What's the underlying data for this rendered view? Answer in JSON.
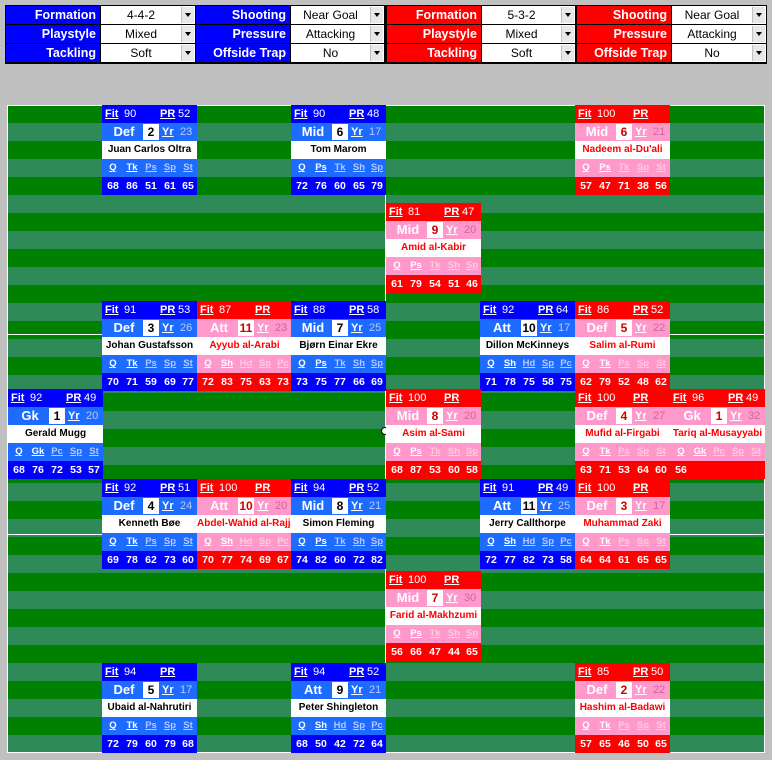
{
  "controls": {
    "blue": {
      "formation_label": "Formation",
      "formation": "4-4-2",
      "playstyle_label": "Playstyle",
      "playstyle": "Mixed",
      "tackling_label": "Tackling",
      "tackling": "Soft",
      "shooting_label": "Shooting",
      "shooting": "Near Goal",
      "pressure_label": "Pressure",
      "pressure": "Attacking",
      "offside_label": "Offside Trap",
      "offside": "No"
    },
    "red": {
      "formation_label": "Formation",
      "formation": "5-3-2",
      "playstyle_label": "Playstyle",
      "playstyle": "Mixed",
      "tackling_label": "Tackling",
      "tackling": "Soft",
      "shooting_label": "Shooting",
      "shooting": "Near Goal",
      "pressure_label": "Pressure",
      "pressure": "Attacking",
      "offside_label": "Offside Trap",
      "offside": "No"
    }
  },
  "labels": {
    "fit": "Fit",
    "pr": "PR",
    "yr": "Yr"
  },
  "colors": {
    "blue_team": "#0000ff",
    "red_team": "#ff0000",
    "pitch_dark": "#008000",
    "pitch_light": "#2e8b57"
  },
  "players": [
    {
      "team": "blue",
      "col": 1,
      "row": 0,
      "fit": "90",
      "pr": "52",
      "pos": "Def",
      "num": "2",
      "yr": "23",
      "name": "Juan Carlos Oltra",
      "abbr": [
        "Q",
        "Tk",
        "Ps",
        "Sp",
        "St"
      ],
      "stats": [
        "68",
        "86",
        "51",
        "61",
        "65"
      ]
    },
    {
      "team": "blue",
      "col": 3,
      "row": 0,
      "fit": "90",
      "pr": "48",
      "pos": "Mid",
      "num": "6",
      "yr": "17",
      "name": "Tom Marom",
      "abbr": [
        "Q",
        "Ps",
        "Tk",
        "Sh",
        "Sp"
      ],
      "stats": [
        "72",
        "76",
        "60",
        "65",
        "79"
      ]
    },
    {
      "team": "red",
      "col": 6,
      "row": 0,
      "fit": "100",
      "pr": "",
      "pos": "Mid",
      "num": "6",
      "yr": "21",
      "name": "Nadeem al-Du'ali",
      "abbr": [
        "Q",
        "Ps",
        "Tk",
        "Sp",
        "St"
      ],
      "stats": [
        "57",
        "47",
        "71",
        "38",
        "56"
      ]
    },
    {
      "team": "red",
      "col": 4,
      "row": 1,
      "fit": "81",
      "pr": "47",
      "pos": "Mid",
      "num": "9",
      "yr": "20",
      "name": "Amid al-Kabir",
      "abbr": [
        "Q",
        "Ps",
        "Tk",
        "Sh",
        "Sp"
      ],
      "stats": [
        "61",
        "79",
        "54",
        "51",
        "46"
      ]
    },
    {
      "team": "blue",
      "col": 1,
      "row": 2,
      "fit": "91",
      "pr": "53",
      "pos": "Def",
      "num": "3",
      "yr": "26",
      "name": "Johan Gustafsson",
      "abbr": [
        "Q",
        "Tk",
        "Ps",
        "Sp",
        "St"
      ],
      "stats": [
        "70",
        "71",
        "59",
        "69",
        "77"
      ]
    },
    {
      "team": "red",
      "col": 2,
      "row": 2,
      "fit": "87",
      "pr": "",
      "pos": "Att",
      "num": "11",
      "yr": "23",
      "name": "Ayyub al-Arabi",
      "abbr": [
        "Q",
        "Sh",
        "Hd",
        "Sp",
        "Pc"
      ],
      "stats": [
        "72",
        "83",
        "75",
        "63",
        "73"
      ]
    },
    {
      "team": "blue",
      "col": 3,
      "row": 2,
      "fit": "88",
      "pr": "58",
      "pos": "Mid",
      "num": "7",
      "yr": "25",
      "name": "Bjørn Einar Ekre",
      "abbr": [
        "Q",
        "Ps",
        "Tk",
        "Sh",
        "Sp"
      ],
      "stats": [
        "73",
        "75",
        "77",
        "66",
        "69"
      ]
    },
    {
      "team": "blue",
      "col": 5,
      "row": 2,
      "fit": "92",
      "pr": "64",
      "pos": "Att",
      "num": "10",
      "yr": "17",
      "name": "Dillon McKinneys",
      "abbr": [
        "Q",
        "Sh",
        "Hd",
        "Sp",
        "Pc"
      ],
      "stats": [
        "71",
        "78",
        "75",
        "58",
        "75"
      ]
    },
    {
      "team": "red",
      "col": 6,
      "row": 2,
      "fit": "86",
      "pr": "52",
      "pos": "Def",
      "num": "5",
      "yr": "22",
      "name": "Salim al-Rumi",
      "abbr": [
        "Q",
        "Tk",
        "Ps",
        "Sp",
        "St"
      ],
      "stats": [
        "62",
        "79",
        "52",
        "48",
        "62"
      ]
    },
    {
      "team": "blue",
      "col": 0,
      "row": 3,
      "fit": "92",
      "pr": "49",
      "pos": "Gk",
      "num": "1",
      "yr": "20",
      "name": "Gerald Mugg",
      "abbr": [
        "Q",
        "Gk",
        "Pc",
        "Sp",
        "St"
      ],
      "stats": [
        "68",
        "76",
        "72",
        "53",
        "57"
      ]
    },
    {
      "team": "red",
      "col": 4,
      "row": 3,
      "fit": "100",
      "pr": "",
      "pos": "Mid",
      "num": "8",
      "yr": "20",
      "name": "Asim al-Sami",
      "abbr": [
        "Q",
        "Ps",
        "Tk",
        "Sh",
        "Sp"
      ],
      "stats": [
        "68",
        "87",
        "53",
        "60",
        "58"
      ]
    },
    {
      "team": "red",
      "col": 6,
      "row": 3,
      "fit": "100",
      "pr": "",
      "pos": "Def",
      "num": "4",
      "yr": "27",
      "name": "Mufid al-Firgabi",
      "abbr": [
        "Q",
        "Tk",
        "Ps",
        "Sp",
        "St"
      ],
      "stats": [
        "63",
        "71",
        "53",
        "64",
        "60"
      ]
    },
    {
      "team": "red",
      "col": 7,
      "row": 3,
      "fit": "96",
      "pr": "49",
      "pos": "Gk",
      "num": "1",
      "yr": "32",
      "name": "Tariq al-Musayyabi",
      "abbr": [
        "Q",
        "Gk",
        "Pc",
        "Sp",
        "St"
      ],
      "stats": [
        "56",
        "",
        "",
        "",
        ""
      ]
    },
    {
      "team": "blue",
      "col": 1,
      "row": 4,
      "fit": "92",
      "pr": "51",
      "pos": "Def",
      "num": "4",
      "yr": "24",
      "name": "Kenneth Bøe",
      "abbr": [
        "Q",
        "Tk",
        "Ps",
        "Sp",
        "St"
      ],
      "stats": [
        "69",
        "78",
        "62",
        "73",
        "60"
      ]
    },
    {
      "team": "red",
      "col": 2,
      "row": 4,
      "fit": "100",
      "pr": "",
      "pos": "Att",
      "num": "10",
      "yr": "20",
      "name": "Abdel-Wahid al-Rajjani",
      "abbr": [
        "Q",
        "Sh",
        "Hd",
        "Sp",
        "Pc"
      ],
      "stats": [
        "70",
        "77",
        "74",
        "69",
        "67"
      ]
    },
    {
      "team": "blue",
      "col": 3,
      "row": 4,
      "fit": "94",
      "pr": "52",
      "pos": "Mid",
      "num": "8",
      "yr": "21",
      "name": "Simon Fleming",
      "abbr": [
        "Q",
        "Ps",
        "Tk",
        "Sh",
        "Sp"
      ],
      "stats": [
        "74",
        "82",
        "60",
        "72",
        "82"
      ]
    },
    {
      "team": "blue",
      "col": 5,
      "row": 4,
      "fit": "91",
      "pr": "49",
      "pos": "Att",
      "num": "11",
      "yr": "25",
      "name": "Jerry Callthorpe",
      "abbr": [
        "Q",
        "Sh",
        "Hd",
        "Sp",
        "Pc"
      ],
      "stats": [
        "72",
        "77",
        "82",
        "73",
        "58"
      ]
    },
    {
      "team": "red",
      "col": 6,
      "row": 4,
      "fit": "100",
      "pr": "",
      "pos": "Def",
      "num": "3",
      "yr": "17",
      "name": "Muhammad Zaki",
      "abbr": [
        "Q",
        "Tk",
        "Ps",
        "Sp",
        "St"
      ],
      "stats": [
        "64",
        "64",
        "61",
        "65",
        "65"
      ]
    },
    {
      "team": "red",
      "col": 4,
      "row": 5,
      "fit": "100",
      "pr": "",
      "pos": "Mid",
      "num": "7",
      "yr": "30",
      "name": "Farid al-Makhzumi",
      "abbr": [
        "Q",
        "Ps",
        "Tk",
        "Sh",
        "Sp"
      ],
      "stats": [
        "56",
        "66",
        "47",
        "44",
        "65"
      ]
    },
    {
      "team": "blue",
      "col": 1,
      "row": 6,
      "fit": "94",
      "pr": "",
      "pos": "Def",
      "num": "5",
      "yr": "17",
      "name": "Ubaid al-Nahrutiri",
      "abbr": [
        "Q",
        "Tk",
        "Ps",
        "Sp",
        "St"
      ],
      "stats": [
        "72",
        "79",
        "60",
        "79",
        "68"
      ]
    },
    {
      "team": "blue",
      "col": 3,
      "row": 6,
      "fit": "94",
      "pr": "52",
      "pos": "Att",
      "num": "9",
      "yr": "21",
      "name": "Peter Shingleton",
      "abbr": [
        "Q",
        "Sh",
        "Hd",
        "Sp",
        "Pc"
      ],
      "stats": [
        "68",
        "50",
        "42",
        "72",
        "64"
      ]
    },
    {
      "team": "red",
      "col": 6,
      "row": 6,
      "fit": "85",
      "pr": "50",
      "pos": "Def",
      "num": "2",
      "yr": "22",
      "name": "Hashim al-Badawi",
      "abbr": [
        "Q",
        "Tk",
        "Ps",
        "Sp",
        "St"
      ],
      "stats": [
        "57",
        "65",
        "46",
        "50",
        "65"
      ]
    }
  ]
}
